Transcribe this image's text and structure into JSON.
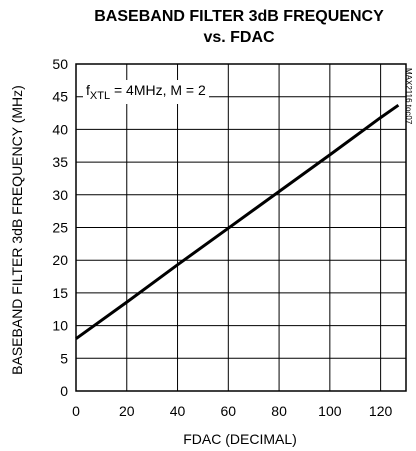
{
  "chart_data": {
    "type": "line",
    "title_line1": "BASEBAND FILTER 3dB FREQUENCY",
    "title_line2": "vs. FDAC",
    "xlabel": "FDAC (DECIMAL)",
    "ylabel": "BASEBAND FILTER 3dB FREQUENCY (MHz)",
    "xlim": [
      0,
      130
    ],
    "ylim": [
      0,
      50
    ],
    "xticks": [
      0,
      20,
      40,
      60,
      80,
      100,
      120
    ],
    "yticks": [
      0,
      5,
      10,
      15,
      20,
      25,
      30,
      35,
      40,
      45,
      50
    ],
    "grid": true,
    "annotation": {
      "prefix": "f",
      "subscript": "XTL",
      "rest": " = 4MHz, M = 2"
    },
    "figure_id": "MAX2116 toc07",
    "series": [
      {
        "color": "#000000",
        "x": [
          0,
          20,
          40,
          60,
          80,
          100,
          120,
          127
        ],
        "y": [
          8.0,
          13.6,
          19.3,
          24.9,
          30.5,
          36.1,
          41.8,
          43.7
        ]
      }
    ]
  }
}
